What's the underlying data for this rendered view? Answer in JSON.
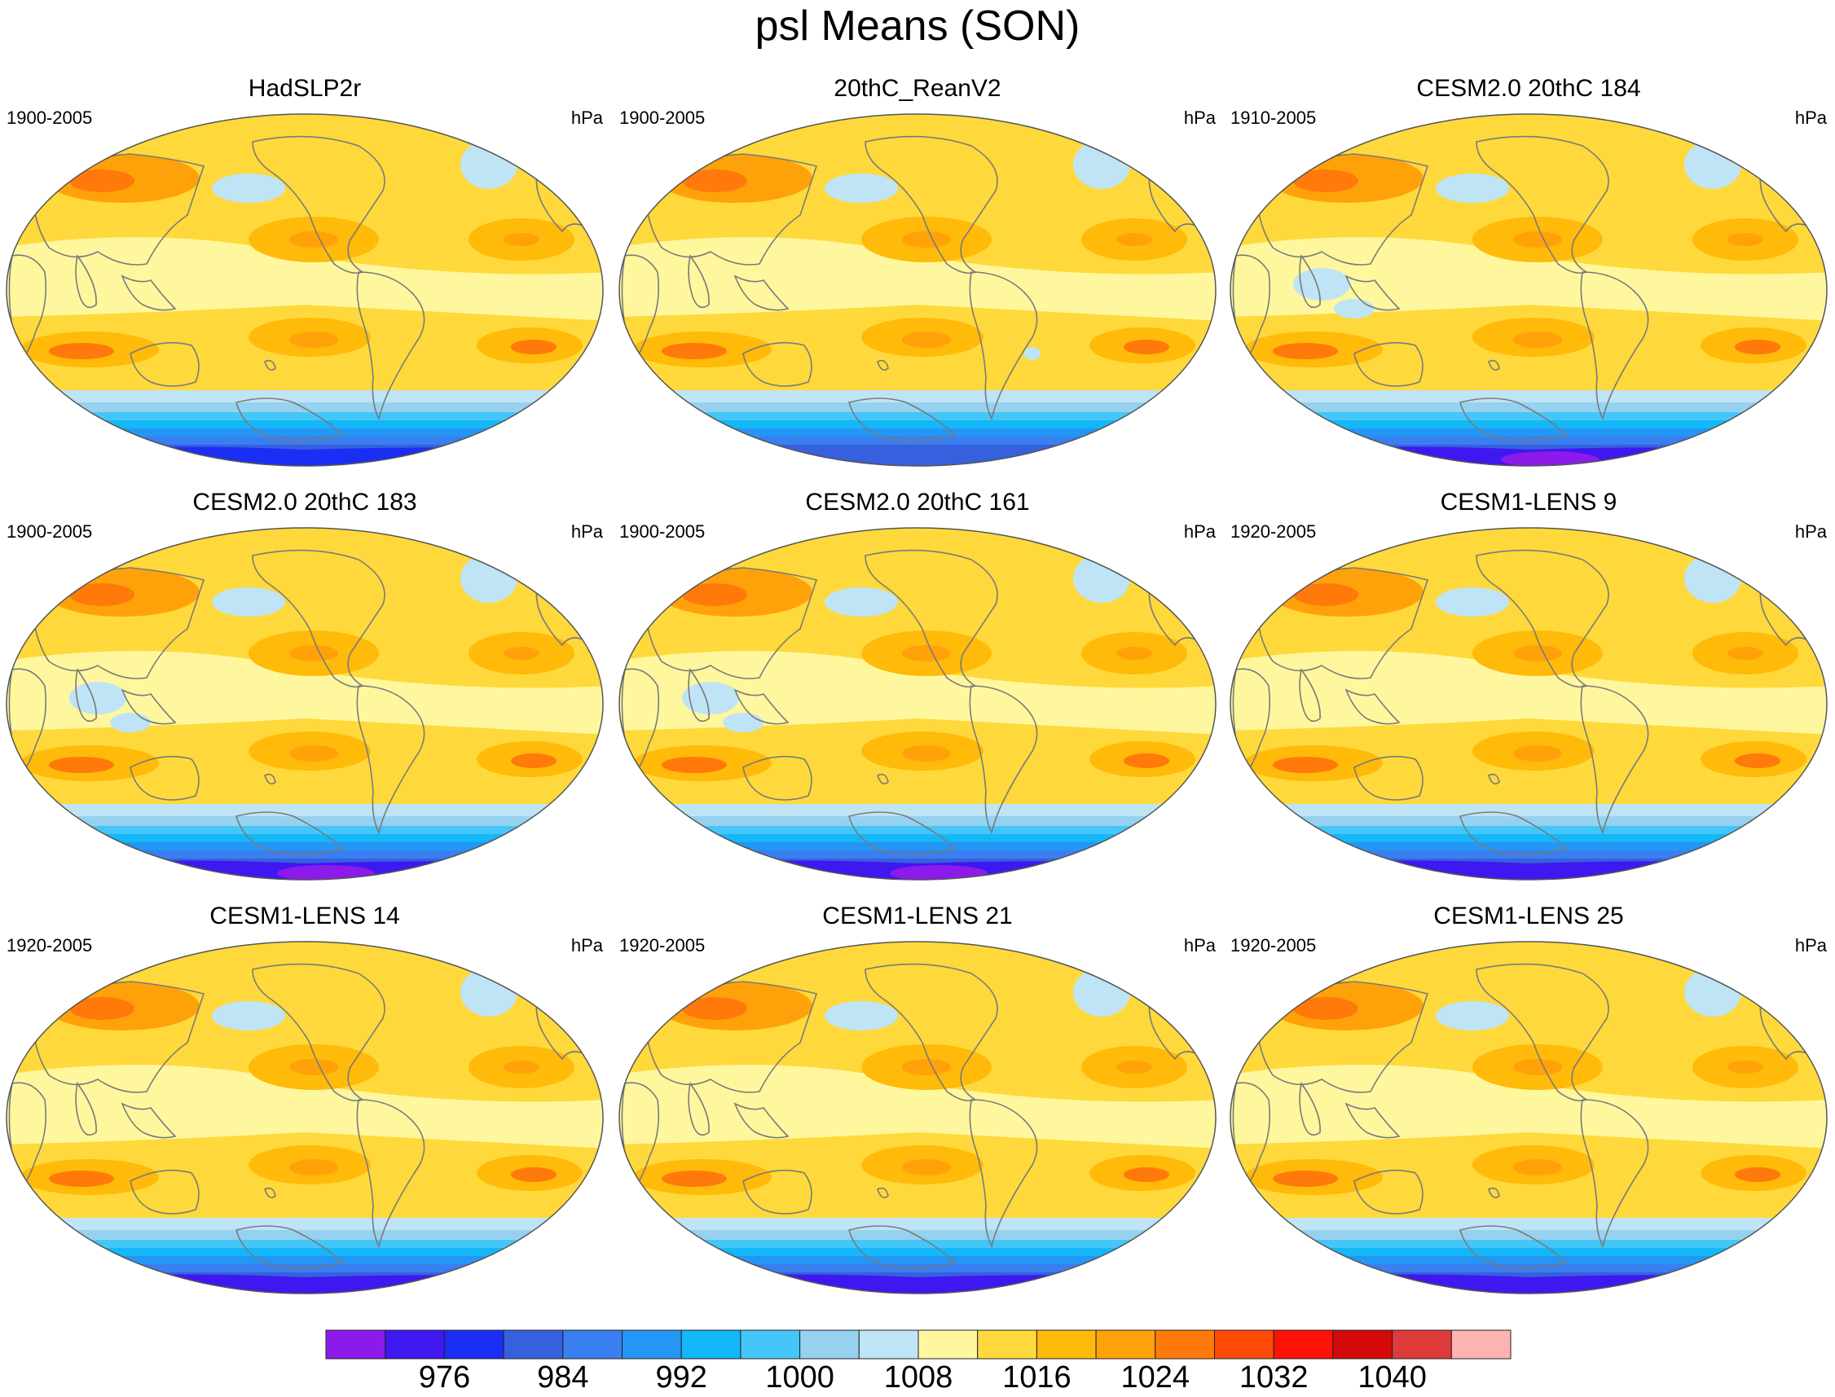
{
  "title": "psl Means (SON)",
  "units": "hPa",
  "colors": {
    "levels": [
      "#8c1aeb",
      "#3f17f0",
      "#1a2ef5",
      "#3760de",
      "#3a7ff0",
      "#2496f5",
      "#14b7f7",
      "#45c6f8",
      "#96d2f0",
      "#bfe4f5",
      "#fff79e",
      "#ffd93b",
      "#ffba0a",
      "#ffa20a",
      "#ff7a0a",
      "#ff4a08",
      "#ff1208",
      "#d40a0a",
      "#de3b3b",
      "#ffb3b3"
    ],
    "coast": "#7a7a7a"
  },
  "chart_data": {
    "type": "heatmap",
    "title": "psl Means (SON)",
    "colorbar": {
      "tick_labels": [
        "976",
        "984",
        "992",
        "1000",
        "1008",
        "1016",
        "1024",
        "1032",
        "1040"
      ],
      "units": "hPa"
    },
    "panels": [
      {
        "name": "HadSLP2r",
        "years": "1900-2005",
        "units": "hPa",
        "style": "obs"
      },
      {
        "name": "20thC_ReanV2",
        "years": "1900-2005",
        "units": "hPa",
        "style": "rean"
      },
      {
        "name": "CESM2.0 20thC 184",
        "years": "1910-2005",
        "units": "hPa",
        "style": "cesm2"
      },
      {
        "name": "CESM2.0 20thC 183",
        "years": "1900-2005",
        "units": "hPa",
        "style": "cesm2"
      },
      {
        "name": "CESM2.0 20thC 161",
        "years": "1900-2005",
        "units": "hPa",
        "style": "cesm2"
      },
      {
        "name": "CESM1-LENS 9",
        "years": "1920-2005",
        "units": "hPa",
        "style": "cesm1"
      },
      {
        "name": "CESM1-LENS 14",
        "years": "1920-2005",
        "units": "hPa",
        "style": "cesm1"
      },
      {
        "name": "CESM1-LENS 21",
        "years": "1920-2005",
        "units": "hPa",
        "style": "cesm1"
      },
      {
        "name": "CESM1-LENS 25",
        "years": "1920-2005",
        "units": "hPa",
        "style": "cesm1"
      }
    ]
  }
}
